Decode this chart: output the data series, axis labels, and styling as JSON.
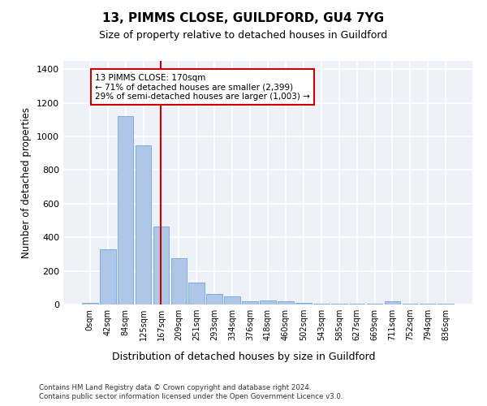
{
  "title1": "13, PIMMS CLOSE, GUILDFORD, GU4 7YG",
  "title2": "Size of property relative to detached houses in Guildford",
  "xlabel": "Distribution of detached houses by size in Guildford",
  "ylabel": "Number of detached properties",
  "bar_labels": [
    "0sqm",
    "42sqm",
    "84sqm",
    "125sqm",
    "167sqm",
    "209sqm",
    "251sqm",
    "293sqm",
    "334sqm",
    "376sqm",
    "418sqm",
    "460sqm",
    "502sqm",
    "543sqm",
    "585sqm",
    "627sqm",
    "669sqm",
    "711sqm",
    "752sqm",
    "794sqm",
    "836sqm"
  ],
  "bar_heights": [
    10,
    330,
    1120,
    945,
    465,
    275,
    130,
    65,
    47,
    20,
    25,
    18,
    12,
    5,
    5,
    5,
    5,
    18,
    3,
    3,
    3
  ],
  "bar_color": "#aec6e8",
  "bar_edge_color": "#5b9bd5",
  "vertical_line_x": 4,
  "vertical_line_color": "#cc0000",
  "annotation_text": "13 PIMMS CLOSE: 170sqm\n← 71% of detached houses are smaller (2,399)\n29% of semi-detached houses are larger (1,003) →",
  "annotation_box_color": "#ffffff",
  "annotation_box_edge_color": "#cc0000",
  "ylim": [
    0,
    1450
  ],
  "yticks": [
    0,
    200,
    400,
    600,
    800,
    1000,
    1200,
    1400
  ],
  "bg_color": "#eef2f8",
  "grid_color": "#ffffff",
  "fig_bg_color": "#ffffff",
  "footer1": "Contains HM Land Registry data © Crown copyright and database right 2024.",
  "footer2": "Contains public sector information licensed under the Open Government Licence v3.0."
}
